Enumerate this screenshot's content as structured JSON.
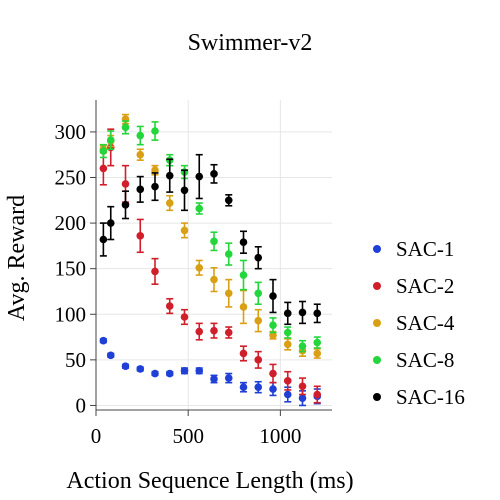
{
  "chart_data": {
    "type": "scatter",
    "title": "Swimmer-v2",
    "xlabel": "Action Sequence Length (ms)",
    "ylabel": "Avg. Reward",
    "xlim": [
      0,
      1280
    ],
    "ylim": [
      -5,
      335
    ],
    "xticks": [
      0,
      500,
      1000
    ],
    "yticks": [
      0,
      50,
      100,
      150,
      200,
      250,
      300
    ],
    "grid": true,
    "error_bars": true,
    "legend_position": "right",
    "series": [
      {
        "name": "SAC-1",
        "color": "#1f3fd6",
        "x": [
          40,
          80,
          160,
          240,
          320,
          400,
          480,
          560,
          640,
          720,
          800,
          880,
          960,
          1040,
          1120,
          1200
        ],
        "y": [
          71,
          55,
          43,
          40,
          35,
          35,
          38,
          38,
          29,
          30,
          20,
          20,
          18,
          12,
          8,
          10
        ],
        "err": [
          2,
          2,
          2,
          2,
          2,
          2,
          3,
          3,
          4,
          5,
          5,
          6,
          7,
          8,
          8,
          8
        ]
      },
      {
        "name": "SAC-2",
        "color": "#d01f2b",
        "x": [
          40,
          80,
          160,
          240,
          320,
          400,
          480,
          560,
          640,
          720,
          800,
          880,
          960,
          1040,
          1120,
          1200
        ],
        "y": [
          260,
          283,
          243,
          186,
          147,
          109,
          97,
          81,
          82,
          80,
          57,
          50,
          35,
          27,
          21,
          12
        ],
        "err": [
          18,
          20,
          20,
          18,
          14,
          8,
          8,
          9,
          8,
          6,
          8,
          9,
          10,
          10,
          9,
          9
        ]
      },
      {
        "name": "SAC-4",
        "color": "#d9a016",
        "x": [
          40,
          80,
          160,
          240,
          320,
          400,
          480,
          560,
          640,
          720,
          800,
          880,
          960,
          1040,
          1120,
          1200
        ],
        "y": [
          281,
          290,
          314,
          275,
          258,
          222,
          192,
          151,
          138,
          123,
          108,
          93,
          77,
          67,
          60,
          57
        ],
        "err": [
          4,
          6,
          5,
          6,
          5,
          8,
          8,
          8,
          13,
          15,
          18,
          12,
          4,
          6,
          6,
          5
        ]
      },
      {
        "name": "SAC-8",
        "color": "#22d63b",
        "x": [
          40,
          80,
          160,
          240,
          320,
          400,
          480,
          560,
          640,
          720,
          800,
          880,
          960,
          1040,
          1120,
          1200
        ],
        "y": [
          279,
          291,
          305,
          296,
          301,
          269,
          256,
          216,
          180,
          166,
          143,
          123,
          88,
          80,
          65,
          69
        ],
        "err": [
          7,
          10,
          7,
          10,
          10,
          6,
          7,
          6,
          10,
          12,
          16,
          12,
          8,
          6,
          6,
          6
        ]
      },
      {
        "name": "SAC-16",
        "color": "#000000",
        "x": [
          40,
          80,
          160,
          240,
          320,
          400,
          480,
          560,
          640,
          720,
          800,
          880,
          960,
          1040,
          1120,
          1200
        ],
        "y": [
          182,
          200,
          220,
          237,
          240,
          252,
          236,
          251,
          254,
          225,
          179,
          162,
          120,
          101,
          102,
          101
        ],
        "err": [
          18,
          18,
          15,
          14,
          15,
          18,
          22,
          24,
          10,
          6,
          12,
          12,
          18,
          12,
          12,
          10
        ]
      }
    ]
  }
}
